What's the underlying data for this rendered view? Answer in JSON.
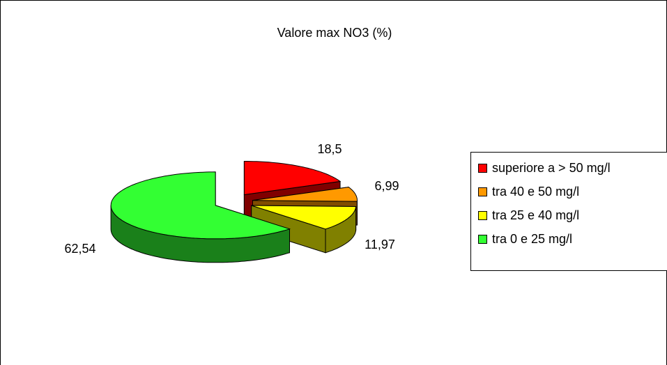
{
  "chart_data": {
    "type": "pie",
    "title": "Valore max NO3 (%)",
    "categories": [
      "superiore a > 50 mg/l",
      "tra 40 e 50 mg/l",
      "tra 25 e 40 mg/l",
      "tra 0 e 25 mg/l"
    ],
    "values": [
      18.5,
      6.99,
      11.97,
      62.54
    ],
    "value_labels": [
      "18,5",
      "6,99",
      "11,97",
      "62,54"
    ],
    "colors": [
      "#ff0000",
      "#ff9900",
      "#ffff00",
      "#33ff33"
    ],
    "legend": "right"
  }
}
